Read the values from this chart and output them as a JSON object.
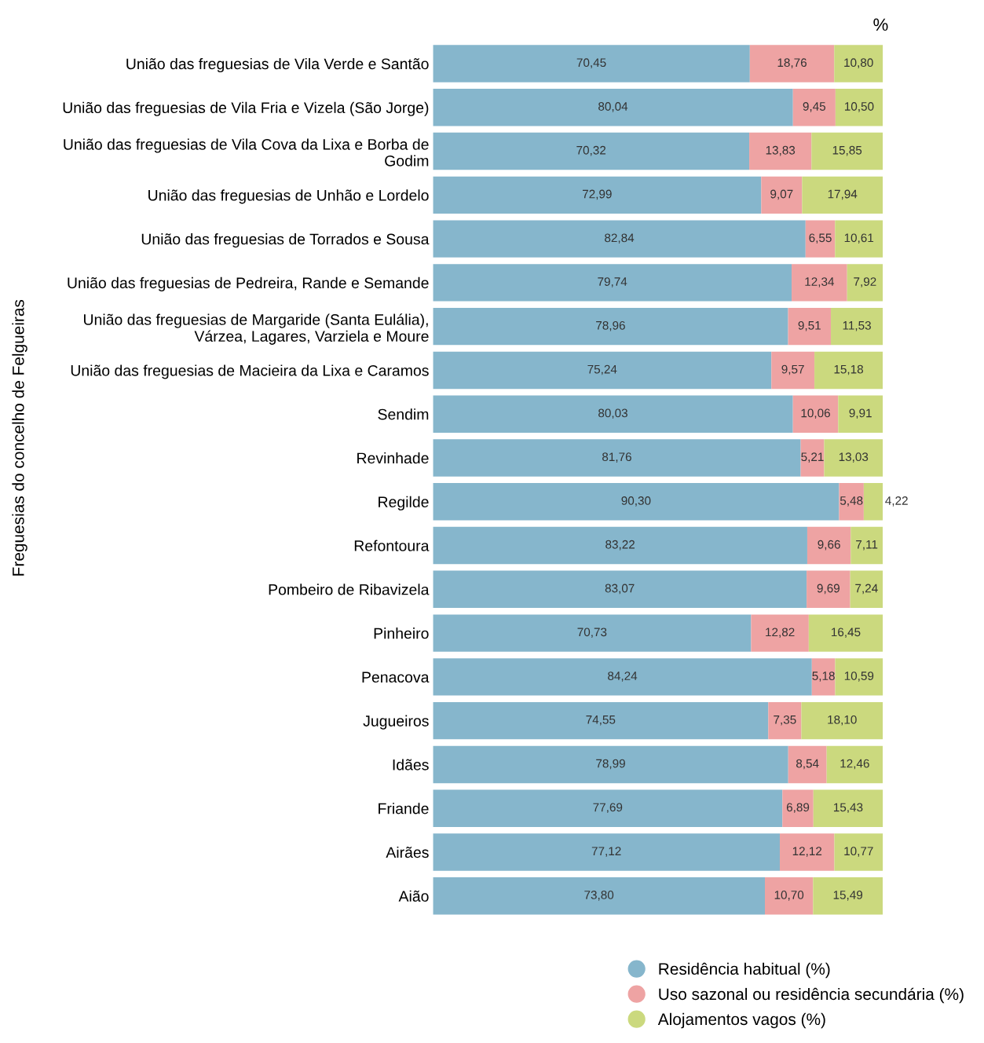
{
  "chart_data": {
    "type": "bar",
    "orientation": "horizontal",
    "stacked": true,
    "ylabel": "Freguesias do concelho de Felgueiras",
    "annotations": [
      "%"
    ],
    "tick_labels": "y",
    "grid": false,
    "legend": "bottom right",
    "categories": [
      "União das freguesias de Vila Verde e Santão",
      "União das freguesias de Vila Fria e Vizela (São Jorge)",
      "União das freguesias de Vila Cova da Lixa e Borba de\nGodim",
      "União das freguesias de Unhão e Lordelo",
      "União das freguesias de Torrados e Sousa",
      "União das freguesias de Pedreira, Rande e Semande",
      "União das freguesias de Margaride (Santa Eulália),\nVárzea, Lagares, Varziela e Moure",
      "União das freguesias de Macieira da Lixa e Caramos",
      "Sendim",
      "Revinhade",
      "Regilde",
      "Refontoura",
      "Pombeiro de Ribavizela",
      "Pinheiro",
      "Penacova",
      "Jugueiros",
      "Idães",
      "Friande",
      "Airães",
      "Aião"
    ],
    "series": [
      {
        "name": "Residência habitual (%)",
        "color": "#86b6cc",
        "values": [
          70.45,
          80.04,
          70.32,
          72.99,
          82.84,
          79.74,
          78.96,
          75.24,
          80.03,
          81.76,
          90.3,
          83.22,
          83.07,
          70.73,
          84.24,
          74.55,
          78.99,
          77.69,
          77.12,
          73.8
        ],
        "value_labels": [
          "70,45",
          "80,04",
          "70,32",
          "72,99",
          "82,84",
          "79,74",
          "78,96",
          "75,24",
          "80,03",
          "81,76",
          "90,30",
          "83,22",
          "83,07",
          "70,73",
          "84,24",
          "74,55",
          "78,99",
          "77,69",
          "77,12",
          "73,80"
        ]
      },
      {
        "name": "Uso sazonal ou residência secundária (%)",
        "color": "#eea3a3",
        "values": [
          18.76,
          9.45,
          13.83,
          9.07,
          6.55,
          12.34,
          9.51,
          9.57,
          10.06,
          5.21,
          5.48,
          9.66,
          9.69,
          12.82,
          5.18,
          7.35,
          8.54,
          6.89,
          12.12,
          10.7
        ],
        "value_labels": [
          "18,76",
          "9,45",
          "13,83",
          "9,07",
          "6,55",
          "12,34",
          "9,51",
          "9,57",
          "10,06",
          "5,21",
          "5,48",
          "9,66",
          "9,69",
          "12,82",
          "5,18",
          "7,35",
          "8,54",
          "6,89",
          "12,12",
          "10,70"
        ]
      },
      {
        "name": "Alojamentos vagos (%)",
        "color": "#cbd97e",
        "values": [
          10.8,
          10.5,
          15.85,
          17.94,
          10.61,
          7.92,
          11.53,
          15.18,
          9.91,
          13.03,
          4.22,
          7.11,
          7.24,
          16.45,
          10.59,
          18.1,
          12.46,
          15.43,
          10.77,
          15.49
        ],
        "value_labels": [
          "10,80",
          "10,50",
          "15,85",
          "17,94",
          "10,61",
          "7,92",
          "11,53",
          "15,18",
          "9,91",
          "13,03",
          "4,22",
          "7,11",
          "7,24",
          "16,45",
          "10,59",
          "18,10",
          "12,46",
          "15,43",
          "10,77",
          "15,49"
        ]
      }
    ]
  }
}
